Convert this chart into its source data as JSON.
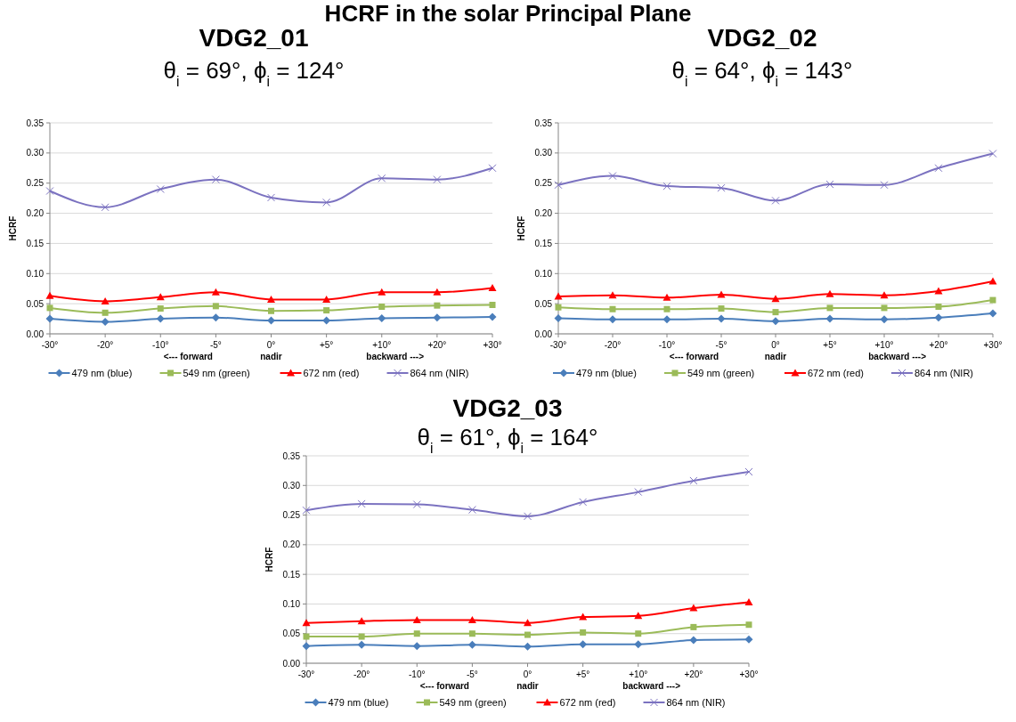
{
  "chart_data": [
    {
      "type": "line",
      "title": "VDG2_01",
      "subtitle": "θ$_{i}$ = 69°, ϕ$_{i}$ = 124°",
      "ylabel": "HCRF",
      "annotations": [
        "HCRF in the solar Principal Plane",
        "<--- forward",
        "nadir",
        "backward --->"
      ],
      "categories": [
        "-30°",
        "-20°",
        "-10°",
        "-5°",
        "0°",
        "+5°",
        "+10°",
        "+20°",
        "+30°"
      ],
      "ylim": [
        0,
        0.35
      ],
      "yticks": [
        {
          "value": 0,
          "label": "0.00"
        },
        {
          "value": 0.05,
          "label": "0.05"
        },
        {
          "value": 0.1,
          "label": "0.10"
        },
        {
          "value": 0.15,
          "label": "0.15"
        },
        {
          "value": 0.2,
          "label": "0.20"
        },
        {
          "value": 0.25,
          "label": "0.25"
        },
        {
          "value": 0.3,
          "label": "0.30"
        },
        {
          "value": 0.35,
          "label": "0.35"
        }
      ],
      "grid": "y",
      "legend": "bottom",
      "series": [
        {
          "name": "479 nm (blue)",
          "color": "#4a7ebb",
          "marker": "diamond",
          "values": [
            0.025,
            0.02,
            0.025,
            0.027,
            0.022,
            0.022,
            0.026,
            0.027,
            0.028
          ]
        },
        {
          "name": "549 nm (green)",
          "color": "#9bbb59",
          "marker": "square",
          "values": [
            0.043,
            0.035,
            0.042,
            0.046,
            0.038,
            0.039,
            0.045,
            0.047,
            0.048
          ]
        },
        {
          "name": "672 nm (red)",
          "color": "#ff0000",
          "marker": "triangle",
          "values": [
            0.063,
            0.054,
            0.061,
            0.069,
            0.057,
            0.057,
            0.069,
            0.069,
            0.076
          ]
        },
        {
          "name": "864 nm (NIR)",
          "color": "#7b72c0",
          "marker": "cross",
          "values": [
            0.237,
            0.21,
            0.24,
            0.256,
            0.226,
            0.218,
            0.258,
            0.256,
            0.275
          ]
        }
      ]
    },
    {
      "type": "line",
      "title": "VDG2_02",
      "subtitle": "θ$_{i}$ = 64°, ϕ$_{i}$ = 143°",
      "ylabel": "HCRF",
      "annotations": [
        "<--- forward",
        "nadir",
        "backward --->"
      ],
      "categories": [
        "-30°",
        "-20°",
        "-10°",
        "-5°",
        "0°",
        "+5°",
        "+10°",
        "+20°",
        "+30°"
      ],
      "ylim": [
        0,
        0.35
      ],
      "yticks": [
        {
          "value": 0,
          "label": "0.00"
        },
        {
          "value": 0.05,
          "label": "0.05"
        },
        {
          "value": 0.1,
          "label": "0.10"
        },
        {
          "value": 0.15,
          "label": "0.15"
        },
        {
          "value": 0.2,
          "label": "0.20"
        },
        {
          "value": 0.25,
          "label": "0.25"
        },
        {
          "value": 0.3,
          "label": "0.30"
        },
        {
          "value": 0.35,
          "label": "0.35"
        }
      ],
      "grid": "y",
      "legend": "bottom",
      "series": [
        {
          "name": "479 nm (blue)",
          "color": "#4a7ebb",
          "marker": "diamond",
          "values": [
            0.026,
            0.024,
            0.024,
            0.025,
            0.021,
            0.025,
            0.024,
            0.027,
            0.034
          ]
        },
        {
          "name": "549 nm (green)",
          "color": "#9bbb59",
          "marker": "square",
          "values": [
            0.044,
            0.041,
            0.041,
            0.042,
            0.036,
            0.043,
            0.043,
            0.045,
            0.056
          ]
        },
        {
          "name": "672 nm (red)",
          "color": "#ff0000",
          "marker": "triangle",
          "values": [
            0.062,
            0.064,
            0.06,
            0.065,
            0.058,
            0.066,
            0.064,
            0.071,
            0.087
          ]
        },
        {
          "name": "864 nm (NIR)",
          "color": "#7b72c0",
          "marker": "cross",
          "values": [
            0.247,
            0.262,
            0.245,
            0.242,
            0.221,
            0.248,
            0.247,
            0.275,
            0.299
          ]
        }
      ]
    },
    {
      "type": "line",
      "title": "VDG2_03",
      "subtitle": "θ$_{i}$ = 61°, ϕ$_{i}$ = 164°",
      "ylabel": "HCRF",
      "annotations": [
        "<--- forward",
        "nadir",
        "backward --->"
      ],
      "categories": [
        "-30°",
        "-20°",
        "-10°",
        "-5°",
        "0°",
        "+5°",
        "+10°",
        "+20°",
        "+30°"
      ],
      "ylim": [
        0,
        0.35
      ],
      "yticks": [
        {
          "value": 0,
          "label": "0.00"
        },
        {
          "value": 0.05,
          "label": "0.05"
        },
        {
          "value": 0.1,
          "label": "0.10"
        },
        {
          "value": 0.15,
          "label": "0.15"
        },
        {
          "value": 0.2,
          "label": "0.20"
        },
        {
          "value": 0.25,
          "label": "0.25"
        },
        {
          "value": 0.3,
          "label": "0.30"
        },
        {
          "value": 0.35,
          "label": "0.35"
        }
      ],
      "grid": "y",
      "legend": "bottom",
      "series": [
        {
          "name": "479 nm (blue)",
          "color": "#4a7ebb",
          "marker": "diamond",
          "values": [
            0.029,
            0.031,
            0.029,
            0.031,
            0.028,
            0.032,
            0.032,
            0.039,
            0.04
          ]
        },
        {
          "name": "549 nm (green)",
          "color": "#9bbb59",
          "marker": "square",
          "values": [
            0.045,
            0.045,
            0.05,
            0.05,
            0.048,
            0.052,
            0.05,
            0.061,
            0.065
          ]
        },
        {
          "name": "672 nm (red)",
          "color": "#ff0000",
          "marker": "triangle",
          "values": [
            0.068,
            0.071,
            0.073,
            0.073,
            0.068,
            0.078,
            0.08,
            0.093,
            0.103
          ]
        },
        {
          "name": "864 nm (NIR)",
          "color": "#7b72c0",
          "marker": "cross",
          "values": [
            0.258,
            0.269,
            0.268,
            0.259,
            0.248,
            0.272,
            0.289,
            0.308,
            0.323
          ]
        }
      ]
    }
  ]
}
